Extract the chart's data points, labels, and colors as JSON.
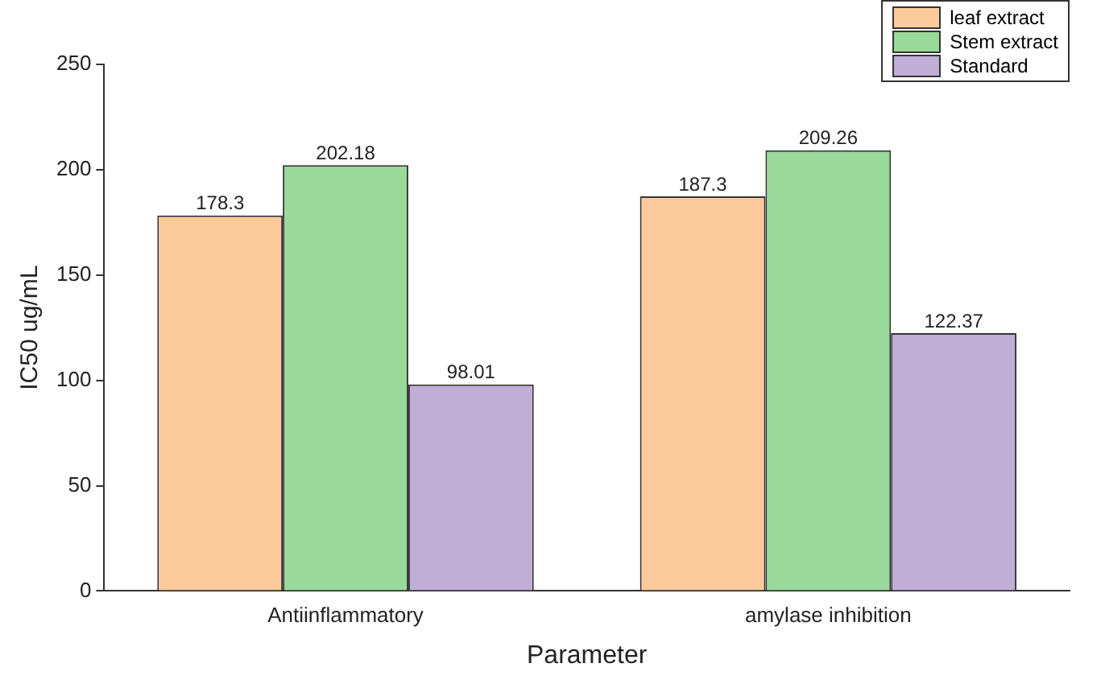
{
  "chart_data": {
    "type": "bar",
    "xlabel": "Parameter",
    "ylabel": "IC50 ug/mL",
    "categories": [
      "Antiinflammatory",
      "amylase inhibition"
    ],
    "series": [
      {
        "name": "leaf extract",
        "color": "#fdcb9b",
        "values": [
          178.3,
          187.3
        ]
      },
      {
        "name": "Stem extract",
        "color": "#99d99a",
        "values": [
          202.18,
          209.26
        ]
      },
      {
        "name": "Standard",
        "color": "#c0aed6",
        "values": [
          98.01,
          122.37
        ]
      }
    ],
    "ylim": [
      0,
      250
    ],
    "yticks": [
      0,
      50,
      100,
      150,
      200,
      250
    ],
    "grid": false,
    "legend": "top right",
    "data_labels": true
  }
}
